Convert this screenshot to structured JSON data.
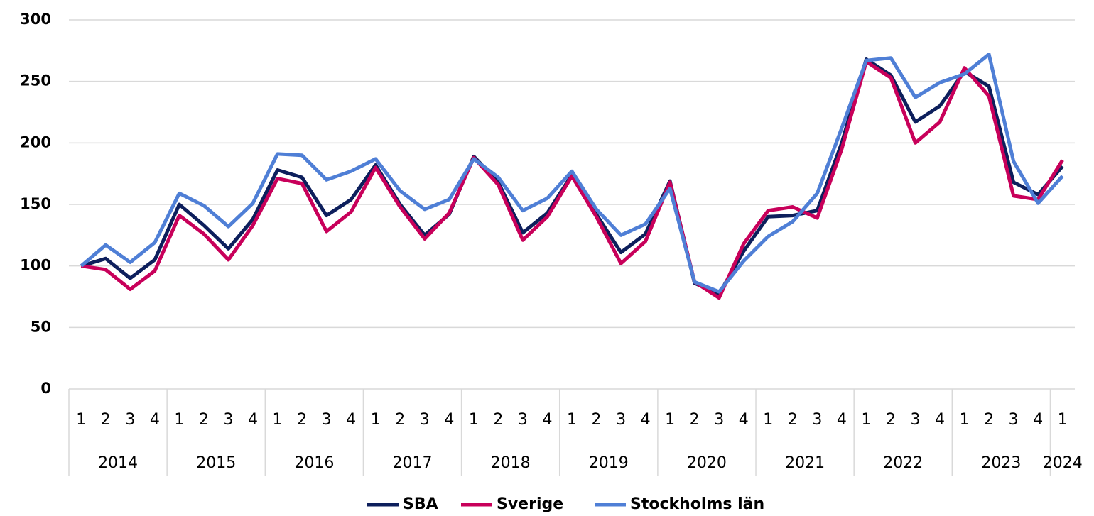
{
  "chart_data": {
    "type": "line",
    "categories": [
      "1",
      "2",
      "3",
      "4",
      "1",
      "2",
      "3",
      "4",
      "1",
      "2",
      "3",
      "4",
      "1",
      "2",
      "3",
      "4",
      "1",
      "2",
      "3",
      "4",
      "1",
      "2",
      "3",
      "4",
      "1",
      "2",
      "3",
      "4",
      "1",
      "2",
      "3",
      "4",
      "1",
      "2",
      "3",
      "4",
      "1",
      "2",
      "3",
      "4",
      "1"
    ],
    "groups": [
      "2014",
      "2015",
      "2016",
      "2017",
      "2018",
      "2019",
      "2020",
      "2021",
      "2022",
      "2023",
      "2024"
    ],
    "series": [
      {
        "name": "SBA",
        "color": "#0d1f5c",
        "values": [
          100,
          106,
          90,
          105,
          150,
          133,
          114,
          138,
          178,
          172,
          141,
          154,
          182,
          150,
          125,
          142,
          189,
          168,
          127,
          143,
          174,
          142,
          111,
          126,
          169,
          86,
          77,
          112,
          140,
          141,
          145,
          200,
          268,
          255,
          217,
          230,
          258,
          246,
          168,
          158,
          181
        ]
      },
      {
        "name": "Sverige",
        "color": "#c8005a",
        "values": [
          100,
          97,
          81,
          96,
          141,
          126,
          105,
          133,
          171,
          167,
          128,
          144,
          180,
          148,
          122,
          143,
          188,
          166,
          121,
          140,
          173,
          140,
          102,
          120,
          168,
          87,
          74,
          118,
          145,
          148,
          139,
          195,
          266,
          253,
          200,
          217,
          261,
          238,
          157,
          154,
          186
        ]
      },
      {
        "name": "Stockholms län",
        "color": "#4f7fd6",
        "values": [
          100,
          117,
          103,
          119,
          159,
          149,
          132,
          151,
          191,
          190,
          170,
          177,
          187,
          161,
          146,
          154,
          187,
          172,
          145,
          155,
          177,
          146,
          125,
          134,
          163,
          87,
          79,
          104,
          124,
          136,
          159,
          212,
          267,
          269,
          237,
          249,
          256,
          272,
          185,
          151,
          173
        ]
      }
    ],
    "ylim": [
      0,
      300
    ],
    "yticks": [
      0,
      50,
      100,
      150,
      200,
      250,
      300
    ],
    "grid": true,
    "legend": "bottom"
  }
}
